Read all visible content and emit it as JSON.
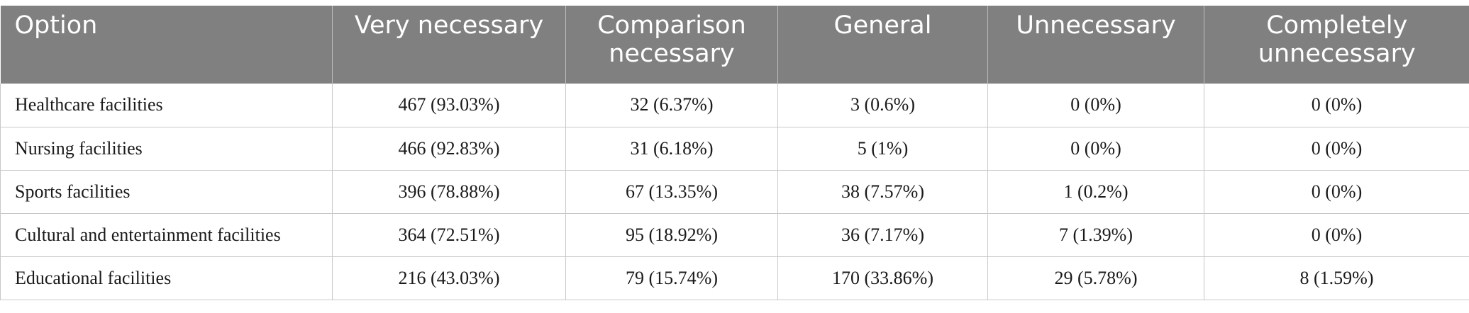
{
  "table": {
    "headers": [
      "Option",
      "Very necessary",
      "Comparison necessary",
      "General",
      "Unnecessary",
      "Completely unnecessary"
    ],
    "rows": [
      [
        "Healthcare facilities",
        "467 (93.03%)",
        "32 (6.37%)",
        "3 (0.6%)",
        "0 (0%)",
        "0 (0%)"
      ],
      [
        "Nursing facilities",
        "466 (92.83%)",
        "31 (6.18%)",
        "5 (1%)",
        "0 (0%)",
        "0 (0%)"
      ],
      [
        "Sports facilities",
        "396 (78.88%)",
        "67 (13.35%)",
        "38 (7.57%)",
        "1 (0.2%)",
        "0 (0%)"
      ],
      [
        "Cultural and entertainment facilities",
        "364 (72.51%)",
        "95 (18.92%)",
        "36 (7.17%)",
        "7 (1.39%)",
        "0 (0%)"
      ],
      [
        "Educational facilities",
        "216 (43.03%)",
        "79 (15.74%)",
        "170 (33.86%)",
        "29 (5.78%)",
        "8 (1.59%)"
      ]
    ]
  }
}
